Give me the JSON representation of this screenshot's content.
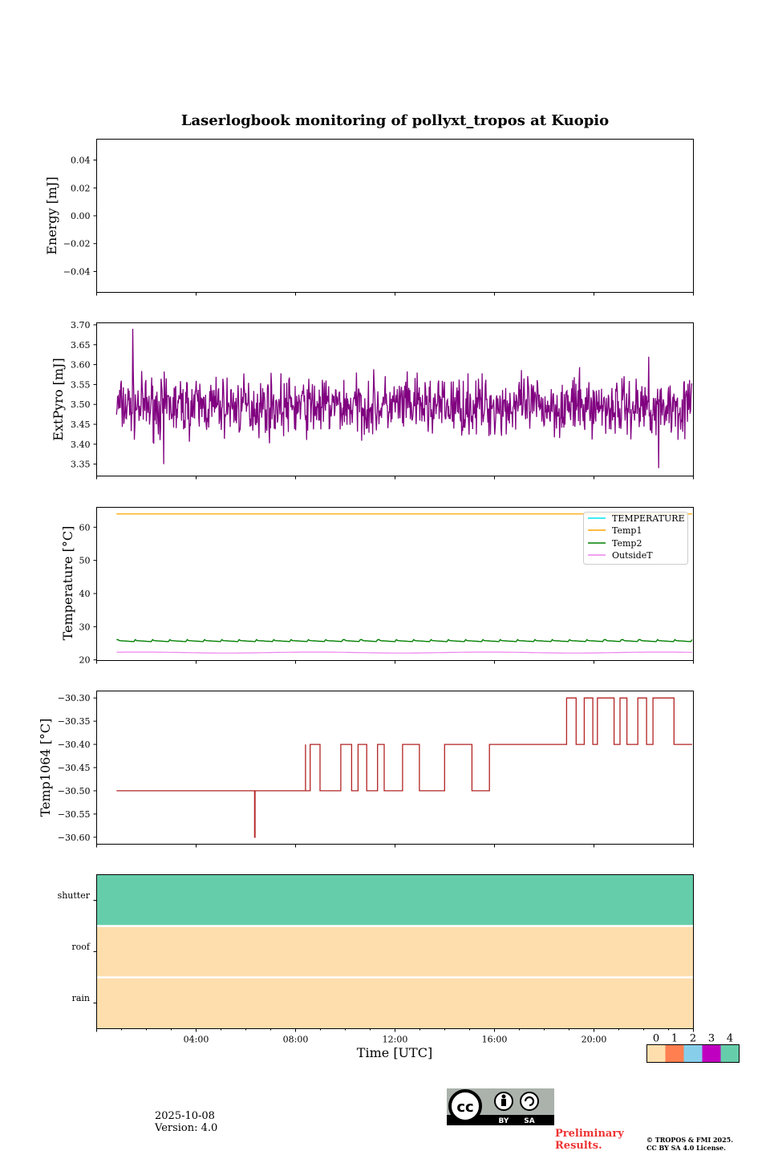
{
  "chart_data": [
    {
      "type": "line",
      "panel": "energy",
      "title": "Laserlogbook monitoring of pollyxt_tropos at Kuopio",
      "ylabel": "Energy [mJ]",
      "ylim": [
        -0.055,
        0.055
      ],
      "yticks": [
        0.04,
        0.02,
        0.0,
        -0.02,
        -0.04
      ],
      "ytick_labels": [
        "0.04",
        "0.02",
        "0.00",
        "−0.02",
        "−0.04"
      ],
      "series": []
    },
    {
      "type": "line",
      "panel": "extpyro",
      "ylabel": "ExtPyro [mJ]",
      "ylim": [
        3.32,
        3.705
      ],
      "yticks": [
        3.7,
        3.65,
        3.6,
        3.55,
        3.5,
        3.45,
        3.4,
        3.35
      ],
      "ytick_labels": [
        "3.70",
        "3.65",
        "3.60",
        "3.55",
        "3.50",
        "3.45",
        "3.40",
        "3.35"
      ],
      "series": [
        {
          "name": "ExtPyro",
          "color": "#800080",
          "x_range_hours": [
            0.8,
            23.95
          ],
          "mean": 3.495,
          "std": 0.045,
          "peaks": [
            [
              1.45,
              3.69
            ],
            [
              2.7,
              3.35
            ],
            [
              22.6,
              3.34
            ],
            [
              22.2,
              3.62
            ]
          ]
        }
      ]
    },
    {
      "type": "line",
      "panel": "temperature",
      "ylabel": "Temperature [°C]",
      "ylim": [
        19.8,
        66.0
      ],
      "yticks": [
        60,
        50,
        40,
        30,
        20
      ],
      "ytick_labels": [
        "60",
        "50",
        "40",
        "30",
        "20"
      ],
      "legend_position": "top-right",
      "series": [
        {
          "name": "TEMPERATURE",
          "color": "#00e5ee",
          "values": []
        },
        {
          "name": "Temp1",
          "color": "#ffa500",
          "value": 64.0
        },
        {
          "name": "Temp2",
          "color": "#008000",
          "value": 25.6
        },
        {
          "name": "OutsideT",
          "color": "#ee82ee",
          "value": 22.2
        }
      ]
    },
    {
      "type": "line",
      "panel": "temp1064",
      "ylabel": "Temp1064 [°C]",
      "ylim": [
        -30.615,
        -30.285
      ],
      "yticks": [
        -30.3,
        -30.35,
        -30.4,
        -30.45,
        -30.5,
        -30.55,
        -30.6
      ],
      "ytick_labels": [
        "−30.30",
        "−30.35",
        "−30.40",
        "−30.45",
        "−30.50",
        "−30.55",
        "−30.60"
      ],
      "series": [
        {
          "name": "Temp1064",
          "color": "#b22222",
          "segments": [
            {
              "from": 0.8,
              "to": 8.4,
              "value": -30.5,
              "dip_at": 6.35,
              "dip_value": -30.6
            },
            {
              "from": 8.4,
              "to": 16.2,
              "value": -30.4,
              "flicker_to": -30.5
            },
            {
              "from": 16.2,
              "to": 18.9,
              "value": -30.4
            },
            {
              "from": 18.9,
              "to": 23.95,
              "value": -30.4,
              "flicker_to": -30.3
            }
          ]
        }
      ]
    },
    {
      "type": "heatmap",
      "panel": "flags",
      "rows": [
        "shutter",
        "roof",
        "rain"
      ],
      "row_values": [
        4,
        0,
        0
      ],
      "xlabel": "Time [UTC]",
      "xlim_hours": [
        0,
        24
      ],
      "xticks": [
        "04:00",
        "08:00",
        "12:00",
        "16:00",
        "20:00"
      ],
      "xtick_hours": [
        4,
        8,
        12,
        16,
        20
      ],
      "colorbar": {
        "labels": [
          "0",
          "1",
          "2",
          "3",
          "4"
        ],
        "colors": [
          "#ffdead",
          "#ff7f50",
          "#87ceeb",
          "#c000c0",
          "#66cdaa"
        ]
      }
    }
  ],
  "footer": {
    "date": "2025-10-08",
    "version": "Version: 4.0",
    "preliminary_line1": "Preliminary",
    "preliminary_line2": "Results.",
    "copyright_line1": "© TROPOS & FMI 2025.",
    "copyright_line2": "CC BY SA 4.0 License.",
    "license_labels": [
      "BY",
      "SA"
    ],
    "license_logo_text": "cc"
  }
}
